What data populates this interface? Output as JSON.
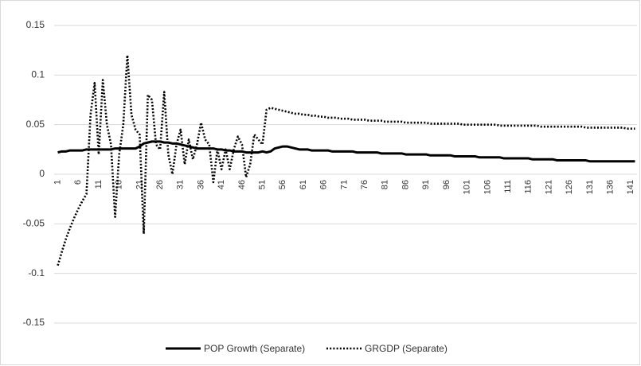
{
  "chart_data": {
    "type": "line",
    "categories": [
      "1",
      null,
      null,
      null,
      null,
      "6",
      null,
      null,
      null,
      null,
      "11",
      null,
      null,
      null,
      null,
      "16",
      null,
      null,
      null,
      null,
      "21",
      null,
      null,
      null,
      null,
      "26",
      null,
      null,
      null,
      null,
      "31",
      null,
      null,
      null,
      null,
      "36",
      null,
      null,
      null,
      null,
      "41",
      null,
      null,
      null,
      null,
      "46",
      null,
      null,
      null,
      null,
      "51",
      null,
      null,
      null,
      null,
      "56",
      null,
      null,
      null,
      null,
      "61",
      null,
      null,
      null,
      null,
      "66",
      null,
      null,
      null,
      null,
      "71",
      null,
      null,
      null,
      null,
      "76",
      null,
      null,
      null,
      null,
      "81",
      null,
      null,
      null,
      null,
      "86",
      null,
      null,
      null,
      null,
      "91",
      null,
      null,
      null,
      null,
      "96",
      null,
      null,
      null,
      null,
      "101",
      null,
      null,
      null,
      null,
      "106",
      null,
      null,
      null,
      null,
      "111",
      null,
      null,
      null,
      null,
      "116",
      null,
      null,
      null,
      null,
      "121",
      null,
      null,
      null,
      null,
      "126",
      null,
      null,
      null,
      null,
      "131",
      null,
      null,
      null,
      null,
      "136",
      null,
      null,
      null,
      null,
      "141",
      null
    ],
    "series": [
      {
        "name": "POP Growth (Separate)",
        "color": "#000000",
        "dash": "solid",
        "values": [
          0.022,
          0.023,
          0.023,
          0.024,
          0.024,
          0.024,
          0.024,
          0.025,
          0.025,
          0.025,
          0.025,
          0.025,
          0.025,
          0.025,
          0.026,
          0.026,
          0.026,
          0.026,
          0.026,
          0.026,
          0.028,
          0.031,
          0.032,
          0.033,
          0.033,
          0.033,
          0.032,
          0.032,
          0.031,
          0.031,
          0.03,
          0.029,
          0.028,
          0.027,
          0.026,
          0.026,
          0.026,
          0.026,
          0.026,
          0.025,
          0.025,
          0.024,
          0.024,
          0.023,
          0.023,
          0.023,
          0.022,
          0.022,
          0.022,
          0.022,
          0.023,
          0.022,
          0.023,
          0.026,
          0.027,
          0.028,
          0.028,
          0.027,
          0.026,
          0.025,
          0.025,
          0.025,
          0.024,
          0.024,
          0.024,
          0.024,
          0.024,
          0.023,
          0.023,
          0.023,
          0.023,
          0.023,
          0.023,
          0.022,
          0.022,
          0.022,
          0.022,
          0.022,
          0.022,
          0.021,
          0.021,
          0.021,
          0.021,
          0.021,
          0.021,
          0.02,
          0.02,
          0.02,
          0.02,
          0.02,
          0.02,
          0.019,
          0.019,
          0.019,
          0.019,
          0.019,
          0.019,
          0.018,
          0.018,
          0.018,
          0.018,
          0.018,
          0.018,
          0.017,
          0.017,
          0.017,
          0.017,
          0.017,
          0.017,
          0.016,
          0.016,
          0.016,
          0.016,
          0.016,
          0.016,
          0.016,
          0.015,
          0.015,
          0.015,
          0.015,
          0.015,
          0.015,
          0.014,
          0.014,
          0.014,
          0.014,
          0.014,
          0.014,
          0.014,
          0.014,
          0.013,
          0.013,
          0.013,
          0.013,
          0.013,
          0.013,
          0.013,
          0.013,
          0.013,
          0.013,
          0.013,
          0.013
        ]
      },
      {
        "name": "GRGDP (Separate)",
        "color": "#000000",
        "dash": "dotted",
        "values": [
          -0.092,
          -0.078,
          -0.065,
          -0.054,
          -0.044,
          -0.035,
          -0.027,
          -0.02,
          0.06,
          0.092,
          0.02,
          0.095,
          0.05,
          0.03,
          -0.043,
          0.02,
          0.05,
          0.12,
          0.06,
          0.045,
          0.04,
          -0.06,
          0.08,
          0.075,
          0.03,
          0.025,
          0.083,
          0.02,
          0.0,
          0.03,
          0.045,
          0.01,
          0.035,
          0.015,
          0.03,
          0.052,
          0.035,
          0.03,
          -0.008,
          0.025,
          0.005,
          0.025,
          0.005,
          0.025,
          0.038,
          0.03,
          -0.003,
          0.01,
          0.04,
          0.035,
          0.03,
          0.065,
          0.067,
          0.066,
          0.065,
          0.064,
          0.063,
          0.062,
          0.061,
          0.061,
          0.06,
          0.06,
          0.059,
          0.059,
          0.058,
          0.058,
          0.057,
          0.057,
          0.057,
          0.056,
          0.056,
          0.056,
          0.055,
          0.055,
          0.055,
          0.055,
          0.054,
          0.054,
          0.054,
          0.054,
          0.053,
          0.053,
          0.053,
          0.053,
          0.053,
          0.052,
          0.052,
          0.052,
          0.052,
          0.052,
          0.052,
          0.051,
          0.051,
          0.051,
          0.051,
          0.051,
          0.051,
          0.051,
          0.051,
          0.05,
          0.05,
          0.05,
          0.05,
          0.05,
          0.05,
          0.05,
          0.05,
          0.05,
          0.049,
          0.049,
          0.049,
          0.049,
          0.049,
          0.049,
          0.049,
          0.049,
          0.049,
          0.049,
          0.048,
          0.048,
          0.048,
          0.048,
          0.048,
          0.048,
          0.048,
          0.048,
          0.048,
          0.048,
          0.048,
          0.047,
          0.047,
          0.047,
          0.047,
          0.047,
          0.047,
          0.047,
          0.047,
          0.047,
          0.047,
          0.046,
          0.046,
          0.046
        ]
      }
    ],
    "ylim": [
      -0.15,
      0.15
    ],
    "yticks": [
      0.15,
      0.1,
      0.05,
      0,
      -0.05,
      -0.1,
      -0.15
    ],
    "grid": true,
    "legend": "bottom"
  }
}
